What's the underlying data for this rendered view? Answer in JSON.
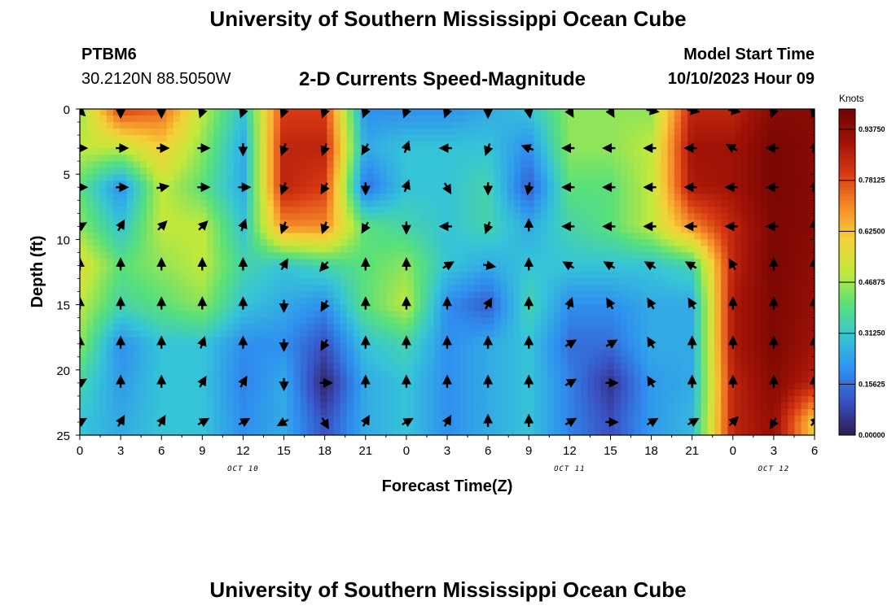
{
  "header": {
    "title": "University of Southern Mississippi Ocean Cube",
    "station": "PTBM6",
    "coords": "30.2120N  88.5050W",
    "subtitle": "2-D Currents Speed-Magnitude",
    "model_start_label": "Model Start Time",
    "model_start_value": "10/10/2023 Hour 09",
    "footer_title": "University of Southern Mississippi Ocean Cube"
  },
  "chart_data": {
    "type": "heatmap",
    "title": "2-D Currents Speed-Magnitude",
    "xlabel": "Forecast Time(Z)",
    "ylabel": "Depth (ft)",
    "colorbar_label": "Knots",
    "x_tick_labels": [
      "0",
      "3",
      "6",
      "9",
      "12",
      "15",
      "18",
      "21",
      "0",
      "3",
      "6",
      "9",
      "12",
      "15",
      "18",
      "21",
      "0",
      "3",
      "6"
    ],
    "date_labels": [
      {
        "label": "OCT 10",
        "at_tick": 4
      },
      {
        "label": "OCT 11",
        "at_tick": 12
      },
      {
        "label": "OCT 12",
        "at_tick": 17
      }
    ],
    "y_ticks": [
      0,
      5,
      10,
      15,
      20,
      25
    ],
    "ylim": [
      0,
      25
    ],
    "colorbar_ticks": [
      "0.00000",
      "0.15625",
      "0.31250",
      "0.46875",
      "0.62500",
      "0.78125",
      "0.93750"
    ],
    "colorbar_range": [
      0,
      1.0
    ],
    "colormap": [
      "#2d1b4e",
      "#3a4fc0",
      "#2f8ff0",
      "#36c4d8",
      "#59e07a",
      "#c4e83a",
      "#f5d23a",
      "#f58a28",
      "#d83a14",
      "#a01206",
      "#6e0402"
    ],
    "speed_depths_ft": [
      0,
      3,
      6,
      9,
      12,
      15,
      18,
      21,
      24
    ],
    "speed_knots": [
      [
        0.45,
        0.8,
        0.75,
        0.5,
        0.3,
        0.8,
        0.8,
        0.2,
        0.2,
        0.2,
        0.25,
        0.3,
        0.45,
        0.45,
        0.45,
        0.85,
        0.85,
        0.95,
        0.95
      ],
      [
        0.5,
        0.5,
        0.6,
        0.45,
        0.25,
        0.85,
        0.85,
        0.25,
        0.3,
        0.3,
        0.3,
        0.2,
        0.45,
        0.45,
        0.5,
        0.9,
        0.9,
        0.98,
        0.95
      ],
      [
        0.4,
        0.2,
        0.5,
        0.4,
        0.25,
        0.85,
        0.8,
        0.15,
        0.3,
        0.3,
        0.35,
        0.12,
        0.4,
        0.4,
        0.5,
        0.88,
        0.9,
        0.98,
        0.95
      ],
      [
        0.45,
        0.3,
        0.5,
        0.5,
        0.3,
        0.7,
        0.7,
        0.4,
        0.35,
        0.3,
        0.35,
        0.25,
        0.35,
        0.4,
        0.5,
        0.7,
        0.85,
        0.97,
        0.95
      ],
      [
        0.55,
        0.4,
        0.45,
        0.5,
        0.35,
        0.3,
        0.35,
        0.4,
        0.45,
        0.3,
        0.25,
        0.3,
        0.3,
        0.3,
        0.3,
        0.35,
        0.85,
        0.98,
        0.93
      ],
      [
        0.5,
        0.35,
        0.4,
        0.45,
        0.3,
        0.25,
        0.2,
        0.4,
        0.5,
        0.2,
        0.12,
        0.35,
        0.2,
        0.2,
        0.25,
        0.25,
        0.88,
        0.97,
        0.92
      ],
      [
        0.45,
        0.2,
        0.3,
        0.3,
        0.2,
        0.2,
        0.1,
        0.3,
        0.35,
        0.2,
        0.25,
        0.3,
        0.15,
        0.15,
        0.25,
        0.25,
        0.88,
        0.97,
        0.9
      ],
      [
        0.35,
        0.22,
        0.3,
        0.3,
        0.18,
        0.25,
        0.02,
        0.25,
        0.3,
        0.2,
        0.25,
        0.3,
        0.18,
        0.05,
        0.22,
        0.25,
        0.85,
        0.95,
        0.85
      ],
      [
        0.3,
        0.25,
        0.3,
        0.3,
        0.2,
        0.25,
        0.1,
        0.25,
        0.3,
        0.2,
        0.25,
        0.3,
        0.18,
        0.1,
        0.22,
        0.28,
        0.85,
        0.92,
        0.6
      ]
    ],
    "arrow_depths_ft": [
      0,
      3,
      6,
      9,
      12,
      15,
      18,
      21,
      24
    ],
    "direction_deg": [
      [
        135,
        180,
        180,
        200,
        200,
        200,
        200,
        200,
        200,
        200,
        180,
        170,
        150,
        150,
        100,
        100,
        100,
        200,
        200
      ],
      [
        90,
        90,
        90,
        90,
        180,
        200,
        200,
        210,
        20,
        270,
        200,
        290,
        270,
        270,
        270,
        270,
        300,
        270,
        20
      ],
      [
        90,
        90,
        80,
        90,
        90,
        200,
        210,
        180,
        20,
        150,
        180,
        190,
        270,
        270,
        270,
        270,
        270,
        270,
        20
      ],
      [
        60,
        30,
        45,
        45,
        20,
        200,
        200,
        210,
        180,
        270,
        200,
        0,
        270,
        270,
        270,
        270,
        270,
        270,
        0
      ],
      [
        0,
        0,
        0,
        0,
        0,
        30,
        220,
        0,
        0,
        60,
        100,
        0,
        300,
        300,
        300,
        300,
        330,
        0,
        0
      ],
      [
        0,
        0,
        0,
        0,
        0,
        180,
        210,
        0,
        0,
        0,
        30,
        0,
        20,
        330,
        330,
        330,
        0,
        0,
        0
      ],
      [
        0,
        0,
        0,
        20,
        0,
        180,
        210,
        0,
        0,
        0,
        0,
        0,
        60,
        60,
        330,
        0,
        0,
        0,
        0
      ],
      [
        60,
        0,
        0,
        30,
        30,
        180,
        90,
        0,
        0,
        0,
        0,
        0,
        60,
        90,
        330,
        0,
        0,
        0,
        0
      ],
      [
        60,
        30,
        30,
        60,
        60,
        240,
        150,
        30,
        60,
        30,
        0,
        0,
        60,
        90,
        60,
        60,
        45,
        210,
        45
      ]
    ]
  }
}
